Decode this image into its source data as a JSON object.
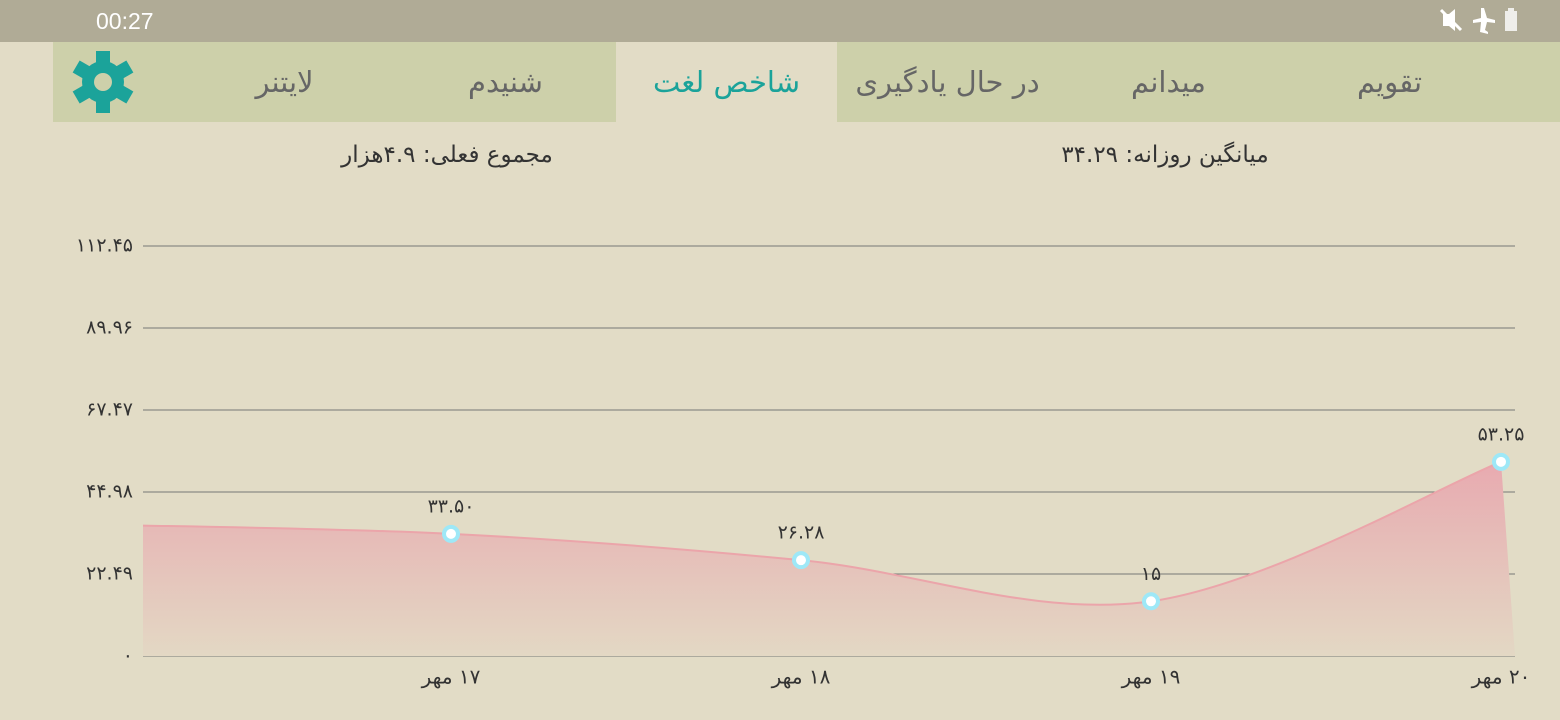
{
  "status_bar": {
    "time": "00:27"
  },
  "tabs": [
    "تقویم",
    "میدانم",
    "در حال یادگیری",
    "شاخص لغت",
    "شنیدم",
    "لایتنر"
  ],
  "active_tab": 3,
  "stats": {
    "daily_average": "میانگین روزانه: ۳۴.۲۹",
    "current_total": "مجموع فعلی: ۴.۹هزار"
  },
  "chart_data": {
    "type": "area",
    "categories": [
      null,
      "۱۷ مهر",
      "۱۸ مهر",
      "۱۹ مهر",
      "۲۰ مهر"
    ],
    "values": [
      36,
      33.5,
      26.28,
      15,
      53.25
    ],
    "value_labels": [
      null,
      "۳۳.۵۰",
      "۲۶.۲۸",
      "۱۵",
      "۵۳.۲۵"
    ],
    "color": "#eba5aa",
    "ylim": [
      0,
      112.45
    ],
    "yticks": [
      {
        "value": 0,
        "label": "۰"
      },
      {
        "value": 22.49,
        "label": "۲۲.۴۹"
      },
      {
        "value": 44.98,
        "label": "۴۴.۹۸"
      },
      {
        "value": 67.47,
        "label": "۶۷.۴۷"
      },
      {
        "value": 89.96,
        "label": "۸۹.۹۶"
      },
      {
        "value": 112.45,
        "label": "۱۱۲.۴۵"
      }
    ],
    "grid": true
  }
}
